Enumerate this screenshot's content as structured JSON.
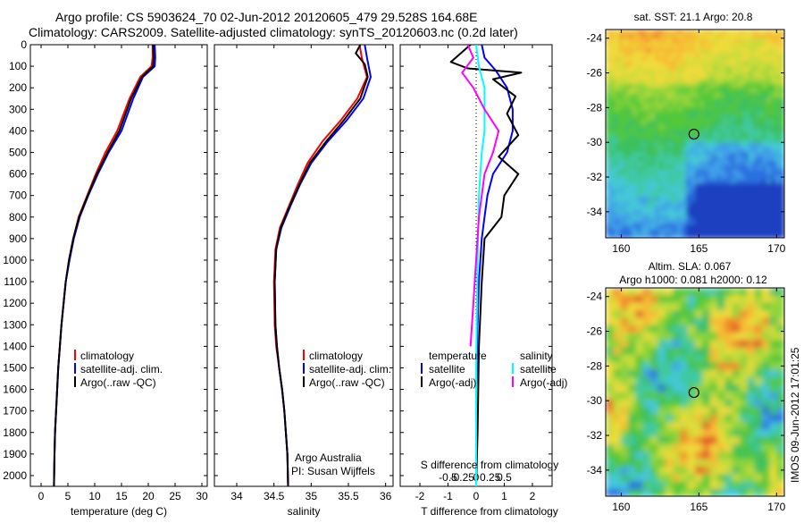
{
  "figure": {
    "title_line1": "Argo profile: CS 5903624_70 02-Jun-2012 20120605_479 29.528S 164.68E",
    "title_line2": "Climatology: CARS2009. Satellite-adjusted climatology: synTS_20120603.nc (0.2d later)",
    "side_stamp": "IMOS 09-Jun-2012 17:01:25"
  },
  "colors": {
    "climatology": "#ff0000",
    "satellite": "#0000ff",
    "argo": "#000000",
    "sal_satellite": "#00ffff",
    "sal_argo": "#ff00ff"
  },
  "chart_data": [
    {
      "type": "line",
      "panel": "temperature",
      "xlabel": "temperature (deg C)",
      "ylabel": "",
      "xlim": [
        -2,
        31
      ],
      "ylim": [
        2050,
        0
      ],
      "xticks": [
        0,
        5,
        10,
        15,
        20,
        25,
        30
      ],
      "yticks": [
        0,
        100,
        200,
        300,
        400,
        500,
        600,
        700,
        800,
        900,
        1000,
        1100,
        1200,
        1300,
        1400,
        1500,
        1600,
        1700,
        1800,
        1900,
        2000
      ],
      "legend": [
        "climatology",
        "satellite-adj. clim.",
        "Argo(..raw -QC)"
      ],
      "series": [
        {
          "name": "climatology",
          "color_key": "climatology",
          "points": [
            [
              20.8,
              0
            ],
            [
              20.8,
              60
            ],
            [
              20.6,
              100
            ],
            [
              18.5,
              150
            ],
            [
              16.5,
              250
            ],
            [
              14.2,
              400
            ],
            [
              12.0,
              500
            ],
            [
              10.2,
              600
            ],
            [
              8.6,
              700
            ],
            [
              7.0,
              800
            ],
            [
              6.0,
              900
            ],
            [
              5.2,
              1000
            ],
            [
              4.6,
              1100
            ],
            [
              4.2,
              1200
            ],
            [
              3.8,
              1300
            ],
            [
              3.5,
              1400
            ],
            [
              3.2,
              1500
            ],
            [
              3.0,
              1600
            ],
            [
              2.8,
              1700
            ],
            [
              2.6,
              1800
            ],
            [
              2.5,
              1900
            ],
            [
              2.4,
              2050
            ]
          ]
        },
        {
          "name": "satellite-adj. clim.",
          "color_key": "satellite",
          "points": [
            [
              21.2,
              0
            ],
            [
              21.3,
              60
            ],
            [
              21.2,
              100
            ],
            [
              19.0,
              150
            ],
            [
              17.2,
              250
            ],
            [
              15.0,
              400
            ],
            [
              12.6,
              500
            ],
            [
              10.6,
              600
            ],
            [
              8.8,
              700
            ],
            [
              7.2,
              800
            ],
            [
              6.1,
              900
            ],
            [
              5.3,
              1000
            ],
            [
              4.6,
              1100
            ],
            [
              4.2,
              1200
            ],
            [
              3.8,
              1300
            ],
            [
              3.5,
              1400
            ],
            [
              3.2,
              1500
            ],
            [
              3.0,
              1600
            ],
            [
              2.8,
              1700
            ],
            [
              2.6,
              1800
            ],
            [
              2.5,
              1900
            ],
            [
              2.4,
              2050
            ]
          ]
        },
        {
          "name": "Argo(..raw -QC)",
          "color_key": "argo",
          "points": [
            [
              20.9,
              0
            ],
            [
              21.0,
              60
            ],
            [
              20.9,
              100
            ],
            [
              18.8,
              150
            ],
            [
              16.8,
              250
            ],
            [
              14.6,
              400
            ],
            [
              12.4,
              500
            ],
            [
              10.4,
              600
            ],
            [
              8.7,
              700
            ],
            [
              7.1,
              800
            ],
            [
              6.0,
              900
            ],
            [
              5.2,
              1000
            ],
            [
              4.6,
              1100
            ],
            [
              4.2,
              1200
            ],
            [
              3.8,
              1300
            ],
            [
              3.5,
              1400
            ],
            [
              3.2,
              1500
            ],
            [
              3.0,
              1600
            ],
            [
              2.8,
              1700
            ],
            [
              2.6,
              1800
            ],
            [
              2.5,
              1900
            ],
            [
              2.4,
              2050
            ]
          ]
        }
      ]
    },
    {
      "type": "line",
      "panel": "salinity",
      "xlabel": "salinity",
      "xlim": [
        33.7,
        36.1
      ],
      "ylim": [
        2050,
        0
      ],
      "xticks": [
        34,
        34.5,
        35,
        35.5,
        36
      ],
      "legend": [
        "climatology",
        "satellite-adj. clim.",
        "Argo(..raw -QC)"
      ],
      "annotation_line1": "Argo Australia",
      "annotation_line2": "PI: Susan Wijffels",
      "series": [
        {
          "name": "climatology",
          "color_key": "climatology",
          "points": [
            [
              35.65,
              0
            ],
            [
              35.68,
              60
            ],
            [
              35.75,
              150
            ],
            [
              35.62,
              250
            ],
            [
              35.4,
              350
            ],
            [
              35.15,
              450
            ],
            [
              34.95,
              550
            ],
            [
              34.82,
              650
            ],
            [
              34.7,
              750
            ],
            [
              34.58,
              850
            ],
            [
              34.52,
              950
            ],
            [
              34.5,
              1100
            ],
            [
              34.51,
              1300
            ],
            [
              34.53,
              1400
            ],
            [
              34.57,
              1500
            ],
            [
              34.61,
              1600
            ],
            [
              34.64,
              1700
            ],
            [
              34.66,
              1800
            ],
            [
              34.68,
              1900
            ],
            [
              34.69,
              2050
            ]
          ]
        },
        {
          "name": "satellite-adj. clim.",
          "color_key": "satellite",
          "points": [
            [
              35.72,
              0
            ],
            [
              35.75,
              60
            ],
            [
              35.8,
              150
            ],
            [
              35.7,
              250
            ],
            [
              35.48,
              350
            ],
            [
              35.22,
              450
            ],
            [
              35.0,
              550
            ],
            [
              34.85,
              650
            ],
            [
              34.72,
              750
            ],
            [
              34.6,
              850
            ],
            [
              34.53,
              950
            ],
            [
              34.51,
              1100
            ],
            [
              34.52,
              1300
            ],
            [
              34.54,
              1400
            ],
            [
              34.57,
              1500
            ],
            [
              34.61,
              1600
            ],
            [
              34.64,
              1700
            ],
            [
              34.66,
              1800
            ],
            [
              34.68,
              1900
            ],
            [
              34.69,
              2050
            ]
          ]
        },
        {
          "name": "Argo(..raw -QC)",
          "color_key": "argo",
          "points": [
            [
              35.66,
              0
            ],
            [
              35.6,
              40
            ],
            [
              35.72,
              90
            ],
            [
              35.76,
              150
            ],
            [
              35.66,
              250
            ],
            [
              35.44,
              350
            ],
            [
              35.2,
              450
            ],
            [
              34.98,
              550
            ],
            [
              34.84,
              650
            ],
            [
              34.71,
              750
            ],
            [
              34.59,
              850
            ],
            [
              34.53,
              950
            ],
            [
              34.51,
              1100
            ],
            [
              34.52,
              1300
            ],
            [
              34.54,
              1400
            ],
            [
              34.57,
              1500
            ],
            [
              34.61,
              1600
            ],
            [
              34.64,
              1700
            ],
            [
              34.66,
              1800
            ],
            [
              34.68,
              1900
            ],
            [
              34.69,
              2050
            ]
          ]
        }
      ]
    },
    {
      "type": "line",
      "panel": "differences",
      "xlabel": "T difference from climatology",
      "xlabel_top": "S difference from climatology",
      "xlim": [
        -2.7,
        2.7
      ],
      "ylim": [
        2050,
        0
      ],
      "xticks": [
        -2,
        -1,
        0,
        1,
        2
      ],
      "s_ticks": [
        "-0.5",
        "-0.25",
        "0",
        "0.25",
        "0.5"
      ],
      "legend_temperature_title": "temperature",
      "legend_salinity_title": "salinity",
      "legend_satellite": "satellite",
      "legend_argo": "Argo(-adj)",
      "series": [
        {
          "name": "temperature satellite",
          "color_key": "satellite",
          "points": [
            [
              0.2,
              0
            ],
            [
              0.3,
              60
            ],
            [
              0.7,
              120
            ],
            [
              1.1,
              200
            ],
            [
              1.3,
              300
            ],
            [
              1.3,
              400
            ],
            [
              1.1,
              500
            ],
            [
              0.6,
              600
            ],
            [
              0.4,
              700
            ],
            [
              0.3,
              800
            ],
            [
              0.2,
              900
            ],
            [
              0.1,
              1100
            ],
            [
              0.05,
              1300
            ],
            [
              0.0,
              1600
            ],
            [
              0.0,
              2050
            ]
          ]
        },
        {
          "name": "temperature Argo(-adj)",
          "color_key": "argo",
          "points": [
            [
              -0.2,
              0
            ],
            [
              -0.9,
              80
            ],
            [
              -0.3,
              110
            ],
            [
              1.6,
              130
            ],
            [
              0.6,
              160
            ],
            [
              1.4,
              240
            ],
            [
              1.1,
              320
            ],
            [
              1.5,
              420
            ],
            [
              0.8,
              520
            ],
            [
              1.5,
              600
            ],
            [
              1.0,
              700
            ],
            [
              0.9,
              800
            ],
            [
              0.3,
              900
            ],
            [
              0.2,
              1100
            ],
            [
              0.1,
              1400
            ],
            [
              0.05,
              1800
            ],
            [
              0.0,
              2050
            ]
          ]
        },
        {
          "name": "salinity satellite",
          "color_key": "sal_satellite",
          "points": [
            [
              0.0,
              0
            ],
            [
              0.1,
              100
            ],
            [
              0.3,
              200
            ],
            [
              0.3,
              300
            ],
            [
              0.3,
              400
            ],
            [
              0.2,
              500
            ],
            [
              0.1,
              700
            ],
            [
              0.05,
              1000
            ],
            [
              0.0,
              1500
            ],
            [
              0.0,
              2050
            ]
          ]
        },
        {
          "name": "salinity Argo(-adj)",
          "color_key": "sal_argo",
          "points": [
            [
              -0.3,
              0
            ],
            [
              -0.1,
              60
            ],
            [
              -0.5,
              130
            ],
            [
              -0.1,
              200
            ],
            [
              0.3,
              300
            ],
            [
              0.8,
              400
            ],
            [
              0.6,
              500
            ],
            [
              0.3,
              600
            ],
            [
              0.1,
              800
            ],
            [
              0.0,
              1000
            ],
            [
              -0.1,
              1200
            ],
            [
              -0.2,
              1400
            ]
          ]
        }
      ]
    },
    {
      "type": "heatmap",
      "panel": "sst_map",
      "title": "sat. SST: 21.1  Argo: 20.8",
      "xticks": [
        "160",
        "165",
        "170"
      ],
      "yticks": [
        "-24",
        "-26",
        "-28",
        "-30",
        "-32",
        "-34"
      ],
      "xlim": [
        159,
        170.5
      ],
      "ylim": [
        -35.5,
        -23.5
      ],
      "marker": {
        "lon": 164.68,
        "lat": -29.528
      }
    },
    {
      "type": "heatmap",
      "panel": "sla_map",
      "title_line1": "Altim. SLA: 0.067",
      "title_line2": "Argo h1000: 0.081 h2000: 0.12",
      "xticks": [
        "160",
        "165",
        "170"
      ],
      "yticks": [
        "-24",
        "-26",
        "-28",
        "-30",
        "-32",
        "-34"
      ],
      "xlim": [
        159,
        170.5
      ],
      "ylim": [
        -35.5,
        -23.5
      ],
      "marker": {
        "lon": 164.68,
        "lat": -29.528
      }
    }
  ]
}
